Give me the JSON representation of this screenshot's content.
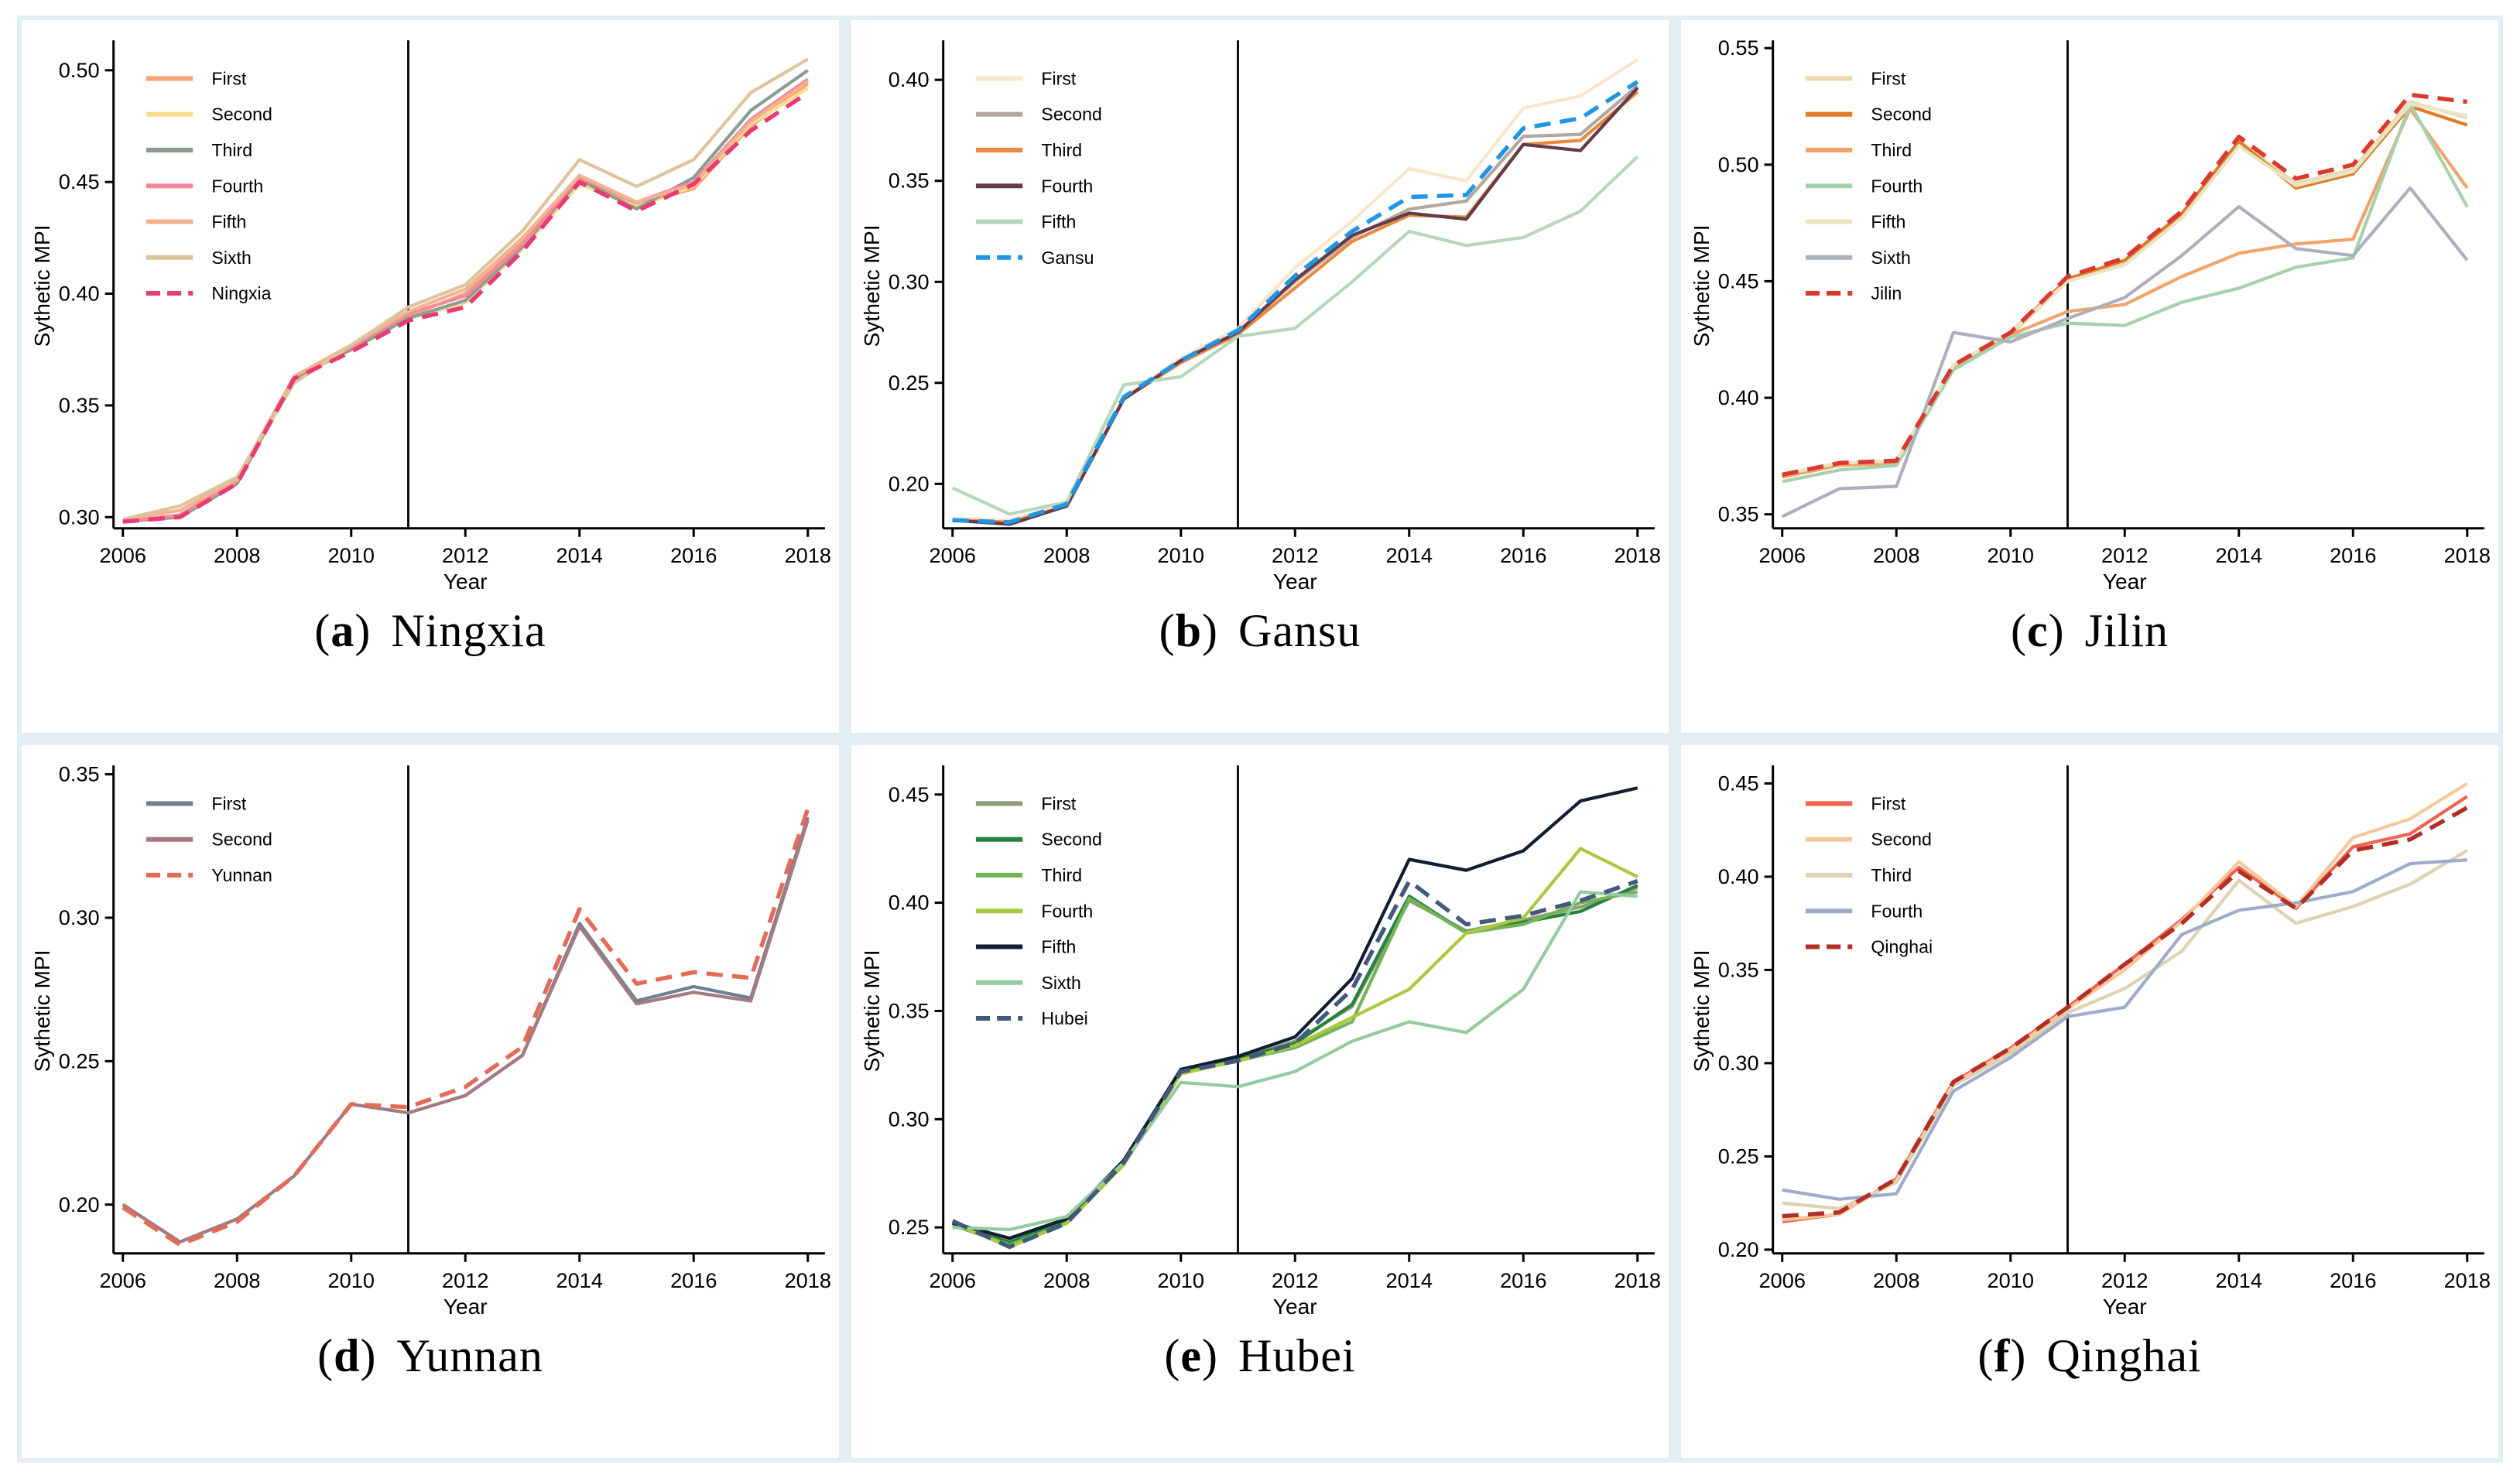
{
  "page": {
    "background": "#ffffff",
    "frame_color": "#e2eef1"
  },
  "figure": {
    "ylabel": "Sythetic MPI",
    "xlabel": "Year",
    "x_min": 2006,
    "x_max": 2018,
    "x_ticks": [
      2006,
      2008,
      2010,
      2012,
      2014,
      2016,
      2018
    ],
    "years": [
      2006,
      2007,
      2008,
      2009,
      2010,
      2011,
      2012,
      2013,
      2014,
      2015,
      2016,
      2017,
      2018
    ],
    "treatment_year": 2011,
    "paren_open": "(",
    "paren_close": ")"
  },
  "chart_data": [
    {
      "type": "line",
      "caption": {
        "letter": "a",
        "name": "Ningxia"
      },
      "ylabel": "Sythetic MPI",
      "xlabel": "Year",
      "ylim": [
        0.295,
        0.512
      ],
      "yticks": [
        0.3,
        0.35,
        0.4,
        0.45,
        0.5
      ],
      "legend_position": "top-left",
      "series": [
        {
          "name": "First",
          "color": "#f6a473",
          "dash": false,
          "values": [
            0.298,
            0.301,
            0.316,
            0.362,
            0.376,
            0.39,
            0.4,
            0.423,
            0.452,
            0.44,
            0.447,
            0.475,
            0.494
          ]
        },
        {
          "name": "Second",
          "color": "#f9dd8f",
          "dash": false,
          "values": [
            0.298,
            0.3,
            0.315,
            0.362,
            0.375,
            0.389,
            0.396,
            0.42,
            0.449,
            0.439,
            0.448,
            0.476,
            0.492
          ]
        },
        {
          "name": "Third",
          "color": "#8c9c90",
          "dash": false,
          "values": [
            0.298,
            0.3,
            0.315,
            0.362,
            0.375,
            0.389,
            0.397,
            0.421,
            0.451,
            0.438,
            0.452,
            0.482,
            0.5
          ]
        },
        {
          "name": "Fourth",
          "color": "#f28a9b",
          "dash": false,
          "values": [
            0.298,
            0.301,
            0.316,
            0.363,
            0.376,
            0.391,
            0.399,
            0.422,
            0.452,
            0.441,
            0.45,
            0.478,
            0.496
          ]
        },
        {
          "name": "Fifth",
          "color": "#f3b391",
          "dash": false,
          "values": [
            0.299,
            0.303,
            0.317,
            0.363,
            0.377,
            0.392,
            0.402,
            0.425,
            0.453,
            0.441,
            0.449,
            0.477,
            0.495
          ]
        },
        {
          "name": "Sixth",
          "color": "#dcc49c",
          "dash": false,
          "values": [
            0.299,
            0.305,
            0.318,
            0.36,
            0.377,
            0.394,
            0.404,
            0.428,
            0.46,
            0.448,
            0.46,
            0.49,
            0.505
          ]
        },
        {
          "name": "Ningxia",
          "color": "#e93a72",
          "dash": true,
          "values": [
            0.298,
            0.3,
            0.315,
            0.362,
            0.374,
            0.388,
            0.394,
            0.419,
            0.45,
            0.437,
            0.449,
            0.473,
            0.49
          ]
        }
      ]
    },
    {
      "type": "line",
      "caption": {
        "letter": "b",
        "name": "Gansu"
      },
      "ylabel": "Sythetic MPI",
      "xlabel": "Year",
      "ylim": [
        0.178,
        0.418
      ],
      "yticks": [
        0.2,
        0.25,
        0.3,
        0.35,
        0.4
      ],
      "legend_position": "top-left",
      "series": [
        {
          "name": "First",
          "color": "#fae5cc",
          "dash": false,
          "values": [
            0.183,
            0.182,
            0.19,
            0.243,
            0.262,
            0.277,
            0.307,
            0.33,
            0.356,
            0.35,
            0.386,
            0.392,
            0.41
          ]
        },
        {
          "name": "Second",
          "color": "#b3a79d",
          "dash": false,
          "values": [
            0.182,
            0.181,
            0.189,
            0.242,
            0.261,
            0.275,
            0.3,
            0.322,
            0.336,
            0.34,
            0.372,
            0.373,
            0.397
          ]
        },
        {
          "name": "Third",
          "color": "#e98a44",
          "dash": false,
          "values": [
            0.182,
            0.181,
            0.189,
            0.242,
            0.26,
            0.274,
            0.297,
            0.32,
            0.333,
            0.332,
            0.368,
            0.37,
            0.394
          ]
        },
        {
          "name": "Fourth",
          "color": "#643b49",
          "dash": false,
          "values": [
            0.182,
            0.18,
            0.189,
            0.242,
            0.261,
            0.275,
            0.301,
            0.323,
            0.334,
            0.331,
            0.368,
            0.365,
            0.396
          ]
        },
        {
          "name": "Fifth",
          "color": "#b7d7ba",
          "dash": false,
          "values": [
            0.198,
            0.185,
            0.191,
            0.249,
            0.253,
            0.273,
            0.277,
            0.3,
            0.325,
            0.318,
            0.322,
            0.335,
            0.362
          ]
        },
        {
          "name": "Gansu",
          "color": "#2095e3",
          "dash": true,
          "values": [
            0.182,
            0.181,
            0.19,
            0.243,
            0.261,
            0.276,
            0.303,
            0.325,
            0.342,
            0.343,
            0.376,
            0.381,
            0.399
          ]
        }
      ]
    },
    {
      "type": "line",
      "caption": {
        "letter": "c",
        "name": "Jilin"
      },
      "ylabel": "Sythetic MPI",
      "xlabel": "Year",
      "ylim": [
        0.344,
        0.552
      ],
      "yticks": [
        0.35,
        0.4,
        0.45,
        0.5,
        0.55
      ],
      "legend_position": "top-left",
      "series": [
        {
          "name": "First",
          "color": "#eed8b0",
          "dash": false,
          "values": [
            0.366,
            0.371,
            0.372,
            0.413,
            0.427,
            0.45,
            0.458,
            0.478,
            0.51,
            0.492,
            0.498,
            0.527,
            0.52
          ]
        },
        {
          "name": "Second",
          "color": "#dd7d26",
          "dash": false,
          "values": [
            0.367,
            0.372,
            0.373,
            0.414,
            0.428,
            0.451,
            0.459,
            0.479,
            0.51,
            0.49,
            0.496,
            0.525,
            0.517
          ]
        },
        {
          "name": "Third",
          "color": "#f0a46b",
          "dash": false,
          "values": [
            0.366,
            0.371,
            0.372,
            0.413,
            0.427,
            0.437,
            0.44,
            0.452,
            0.462,
            0.466,
            0.468,
            0.524,
            0.49
          ]
        },
        {
          "name": "Fourth",
          "color": "#a7d0ab",
          "dash": false,
          "values": [
            0.364,
            0.369,
            0.371,
            0.412,
            0.426,
            0.432,
            0.431,
            0.441,
            0.447,
            0.456,
            0.46,
            0.526,
            0.482
          ]
        },
        {
          "name": "Fifth",
          "color": "#e7e5c6",
          "dash": false,
          "values": [
            0.367,
            0.372,
            0.373,
            0.414,
            0.428,
            0.45,
            0.457,
            0.477,
            0.508,
            0.491,
            0.497,
            0.526,
            0.521
          ]
        },
        {
          "name": "Sixth",
          "color": "#abb0bc",
          "dash": false,
          "values": [
            0.349,
            0.361,
            0.362,
            0.428,
            0.424,
            0.434,
            0.443,
            0.461,
            0.482,
            0.464,
            0.461,
            0.49,
            0.459
          ]
        },
        {
          "name": "Jilin",
          "color": "#da392d",
          "dash": true,
          "values": [
            0.367,
            0.372,
            0.373,
            0.414,
            0.428,
            0.452,
            0.46,
            0.48,
            0.512,
            0.494,
            0.5,
            0.53,
            0.527
          ]
        }
      ]
    },
    {
      "type": "line",
      "caption": {
        "letter": "d",
        "name": "Yunnan"
      },
      "ylabel": "Sythetic MPI",
      "xlabel": "Year",
      "ylim": [
        0.183,
        0.352
      ],
      "yticks": [
        0.2,
        0.25,
        0.3,
        0.35
      ],
      "legend_position": "top-left",
      "series": [
        {
          "name": "First",
          "color": "#6f8092",
          "dash": false,
          "values": [
            0.2,
            0.187,
            0.195,
            0.21,
            0.235,
            0.232,
            0.238,
            0.252,
            0.298,
            0.271,
            0.276,
            0.272,
            0.335
          ]
        },
        {
          "name": "Second",
          "color": "#a57a81",
          "dash": false,
          "values": [
            0.2,
            0.187,
            0.195,
            0.21,
            0.235,
            0.232,
            0.238,
            0.252,
            0.297,
            0.27,
            0.274,
            0.271,
            0.334
          ]
        },
        {
          "name": "Yunnan",
          "color": "#e26c57",
          "dash": true,
          "values": [
            0.199,
            0.186,
            0.194,
            0.21,
            0.235,
            0.234,
            0.241,
            0.255,
            0.303,
            0.277,
            0.281,
            0.279,
            0.338
          ]
        }
      ]
    },
    {
      "type": "line",
      "caption": {
        "letter": "e",
        "name": "Hubei"
      },
      "ylabel": "Sythetic MPI",
      "xlabel": "Year",
      "ylim": [
        0.238,
        0.462
      ],
      "yticks": [
        0.25,
        0.3,
        0.35,
        0.4,
        0.45
      ],
      "legend_position": "top-left",
      "series": [
        {
          "name": "First",
          "color": "#8d9d78",
          "dash": false,
          "values": [
            0.252,
            0.244,
            0.253,
            0.28,
            0.322,
            0.328,
            0.336,
            0.352,
            0.401,
            0.387,
            0.392,
            0.398,
            0.407
          ]
        },
        {
          "name": "Second",
          "color": "#27813f",
          "dash": false,
          "values": [
            0.252,
            0.243,
            0.253,
            0.28,
            0.322,
            0.328,
            0.335,
            0.353,
            0.403,
            0.386,
            0.391,
            0.396,
            0.408
          ]
        },
        {
          "name": "Third",
          "color": "#74b457",
          "dash": false,
          "values": [
            0.251,
            0.242,
            0.252,
            0.279,
            0.321,
            0.327,
            0.333,
            0.345,
            0.402,
            0.386,
            0.39,
            0.4,
            0.405
          ]
        },
        {
          "name": "Fourth",
          "color": "#aac940",
          "dash": false,
          "values": [
            0.252,
            0.241,
            0.252,
            0.279,
            0.321,
            0.327,
            0.334,
            0.347,
            0.36,
            0.386,
            0.393,
            0.425,
            0.412
          ]
        },
        {
          "name": "Fifth",
          "color": "#111d31",
          "dash": false,
          "values": [
            0.252,
            0.245,
            0.254,
            0.281,
            0.323,
            0.329,
            0.338,
            0.365,
            0.42,
            0.415,
            0.424,
            0.447,
            0.453
          ]
        },
        {
          "name": "Sixth",
          "color": "#94cb9f",
          "dash": false,
          "values": [
            0.25,
            0.249,
            0.255,
            0.28,
            0.317,
            0.315,
            0.322,
            0.336,
            0.345,
            0.34,
            0.36,
            0.405,
            0.403
          ]
        },
        {
          "name": "Hubei",
          "color": "#43597b",
          "dash": true,
          "values": [
            0.253,
            0.241,
            0.252,
            0.28,
            0.322,
            0.327,
            0.335,
            0.36,
            0.41,
            0.39,
            0.394,
            0.401,
            0.41
          ]
        }
      ]
    },
    {
      "type": "line",
      "caption": {
        "letter": "f",
        "name": "Qinghai"
      },
      "ylabel": "Sythetic MPI",
      "xlabel": "Year",
      "ylim": [
        0.198,
        0.458
      ],
      "yticks": [
        0.2,
        0.25,
        0.3,
        0.35,
        0.4,
        0.45
      ],
      "legend_position": "top-left",
      "series": [
        {
          "name": "First",
          "color": "#f06350",
          "dash": false,
          "values": [
            0.215,
            0.219,
            0.238,
            0.29,
            0.308,
            0.33,
            0.353,
            0.377,
            0.405,
            0.383,
            0.416,
            0.423,
            0.443
          ]
        },
        {
          "name": "Second",
          "color": "#f6c79b",
          "dash": false,
          "values": [
            0.216,
            0.219,
            0.237,
            0.289,
            0.307,
            0.329,
            0.35,
            0.376,
            0.408,
            0.384,
            0.421,
            0.431,
            0.45
          ]
        },
        {
          "name": "Third",
          "color": "#ded2b2",
          "dash": false,
          "values": [
            0.225,
            0.222,
            0.236,
            0.288,
            0.305,
            0.327,
            0.34,
            0.36,
            0.398,
            0.375,
            0.384,
            0.396,
            0.414
          ]
        },
        {
          "name": "Fourth",
          "color": "#9fabca",
          "dash": false,
          "values": [
            0.232,
            0.227,
            0.23,
            0.285,
            0.303,
            0.325,
            0.33,
            0.369,
            0.382,
            0.386,
            0.392,
            0.407,
            0.409
          ]
        },
        {
          "name": "Qinghai",
          "color": "#b22f26",
          "dash": true,
          "values": [
            0.218,
            0.22,
            0.238,
            0.29,
            0.308,
            0.33,
            0.353,
            0.375,
            0.403,
            0.383,
            0.414,
            0.42,
            0.437
          ]
        }
      ]
    }
  ]
}
